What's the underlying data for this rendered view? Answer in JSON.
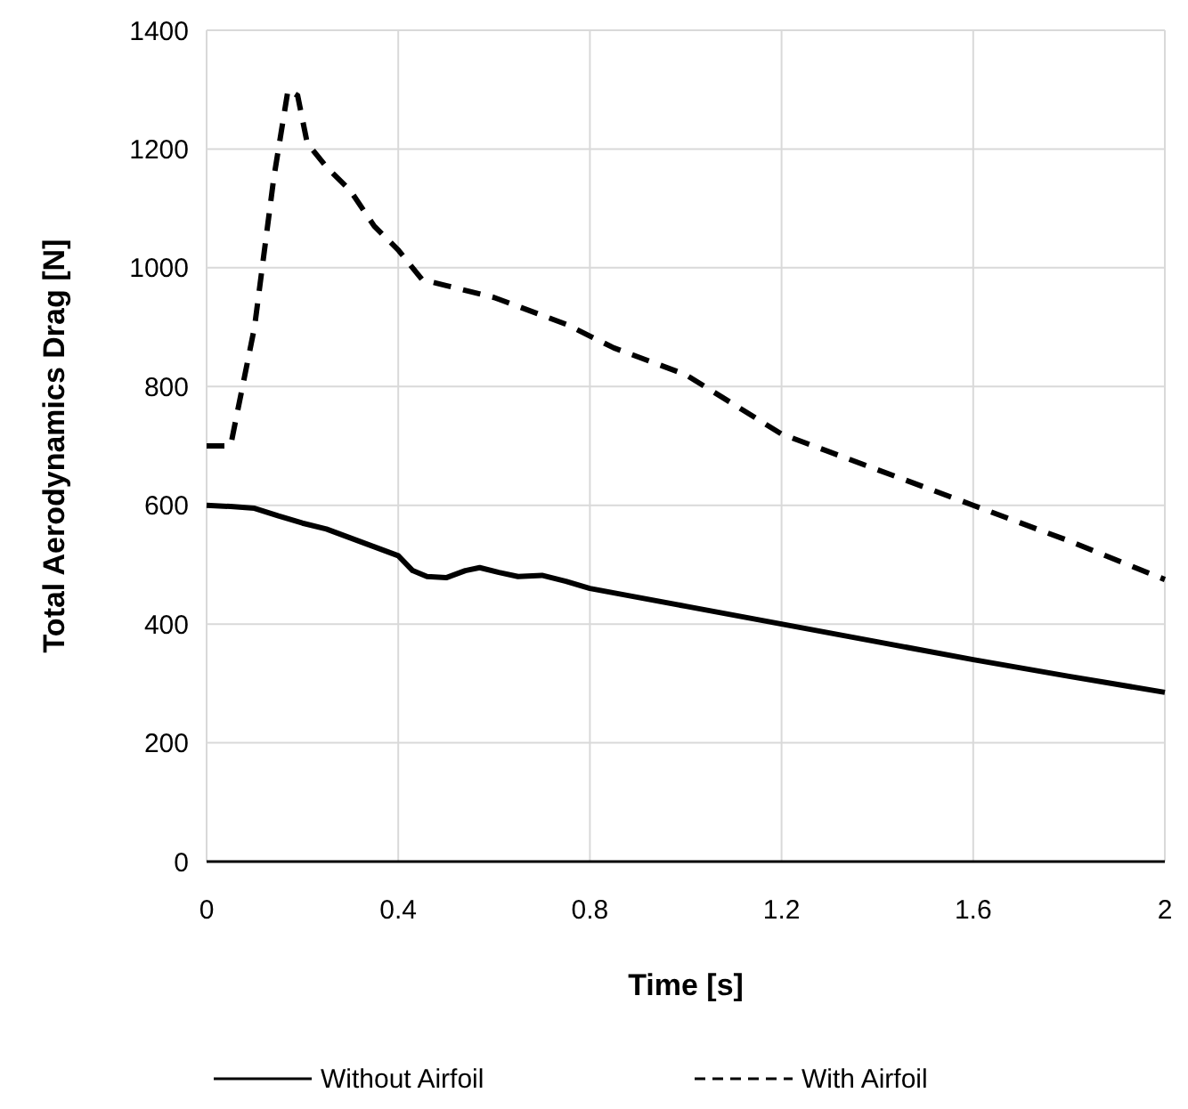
{
  "chart_data": {
    "type": "line",
    "xlabel": "Time [s]",
    "ylabel": "Total Aerodynamics Drag [N]",
    "xlim": [
      0,
      2
    ],
    "xticks": [
      0,
      0.4,
      0.8,
      1.2,
      1.6,
      2
    ],
    "ylim": [
      0,
      1400
    ],
    "yticks": [
      0,
      200,
      400,
      600,
      800,
      1000,
      1200,
      1400
    ],
    "grid": true,
    "legend": "bottom",
    "marker": "none",
    "series": [
      {
        "name": "Without Airfoil",
        "color": "#000000",
        "line_style": "solid",
        "x": [
          0,
          0.05,
          0.1,
          0.15,
          0.2,
          0.25,
          0.3,
          0.35,
          0.4,
          0.43,
          0.46,
          0.5,
          0.54,
          0.57,
          0.61,
          0.65,
          0.7,
          0.75,
          0.8,
          0.9,
          1.0,
          1.2,
          1.4,
          1.6,
          1.8,
          2.0
        ],
        "values": [
          600,
          598,
          595,
          582,
          570,
          560,
          545,
          530,
          515,
          490,
          480,
          478,
          490,
          495,
          487,
          480,
          482,
          472,
          460,
          445,
          430,
          400,
          370,
          340,
          312,
          285
        ]
      },
      {
        "name": "With Airfoil",
        "color": "#000000",
        "line_style": "dashed",
        "x": [
          0,
          0.05,
          0.1,
          0.14,
          0.17,
          0.19,
          0.21,
          0.25,
          0.3,
          0.35,
          0.4,
          0.45,
          0.5,
          0.6,
          0.75,
          0.85,
          1.0,
          1.2,
          1.4,
          1.6,
          1.8,
          2.0
        ],
        "values": [
          700,
          700,
          900,
          1150,
          1300,
          1290,
          1210,
          1170,
          1130,
          1070,
          1030,
          980,
          970,
          950,
          905,
          865,
          820,
          720,
          660,
          600,
          540,
          475
        ]
      }
    ]
  }
}
